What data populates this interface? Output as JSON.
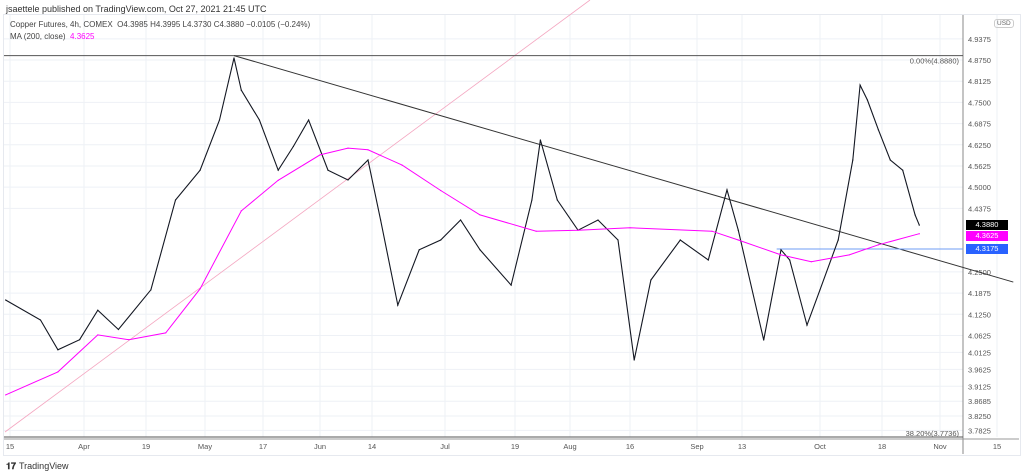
{
  "publisher_line": "jsaettele published on TradingView.com, Oct 27, 2021 21:45 UTC",
  "legend": {
    "symbol": "Copper Futures, 4h, COMEX",
    "ohlc": "O4.3985 H4.3995 L4.3730 C4.3880 −0.0105 (−0.24%)",
    "ma_label": "MA (200, close)",
    "ma_value": "4.3625"
  },
  "currency": "USD",
  "branding": "TradingView",
  "colors": {
    "price": "#131722",
    "ma": "#ff00ff",
    "level": "#2962ff",
    "trend": "#333333",
    "last_tag": "#000000"
  },
  "price_tags": {
    "last": "4.3880",
    "ma": "4.3625",
    "level": "4.3175"
  },
  "chart_data": {
    "type": "line",
    "title": "",
    "y_ticks": [
      "4.9375",
      "4.8750",
      "4.8125",
      "4.7500",
      "4.6875",
      "4.6250",
      "4.5625",
      "4.5000",
      "4.4375",
      "4.2500",
      "4.1875",
      "4.1250",
      "4.0625",
      "4.0125",
      "3.9625",
      "3.9125",
      "3.8685",
      "3.8250",
      "3.7825"
    ],
    "x_ticks": [
      {
        "label": "15",
        "date": "2021-03-15"
      },
      {
        "label": "Apr",
        "date": "2021-04-01"
      },
      {
        "label": "19",
        "date": "2021-04-19"
      },
      {
        "label": "May",
        "date": "2021-05-01"
      },
      {
        "label": "17",
        "date": "2021-05-17"
      },
      {
        "label": "Jun",
        "date": "2021-06-01"
      },
      {
        "label": "14",
        "date": "2021-06-14"
      },
      {
        "label": "Jul",
        "date": "2021-07-01"
      },
      {
        "label": "19",
        "date": "2021-07-19"
      },
      {
        "label": "Aug",
        "date": "2021-08-01"
      },
      {
        "label": "16",
        "date": "2021-08-16"
      },
      {
        "label": "Sep",
        "date": "2021-09-01"
      },
      {
        "label": "13",
        "date": "2021-09-13"
      },
      {
        "label": "Oct",
        "date": "2021-10-01"
      },
      {
        "label": "18",
        "date": "2021-10-18"
      },
      {
        "label": "Nov",
        "date": "2021-11-01"
      },
      {
        "label": "15",
        "date": "2021-11-15"
      }
    ],
    "ylim": [
      3.77,
      4.97
    ],
    "grid": true,
    "series": [
      {
        "name": "Copper Futures",
        "points": [
          [
            "2021-03-14",
            4.167
          ],
          [
            "2021-03-22",
            4.108
          ],
          [
            "2021-03-26",
            4.02
          ],
          [
            "2021-03-31",
            4.05
          ],
          [
            "2021-04-05",
            4.137
          ],
          [
            "2021-04-11",
            4.08
          ],
          [
            "2021-04-20",
            4.197
          ],
          [
            "2021-04-25",
            4.462
          ],
          [
            "2021-04-30",
            4.55
          ],
          [
            "2021-05-05",
            4.698
          ],
          [
            "2021-05-09",
            4.881
          ],
          [
            "2021-05-11",
            4.786
          ],
          [
            "2021-05-16",
            4.698
          ],
          [
            "2021-05-21",
            4.55
          ],
          [
            "2021-05-25",
            4.62
          ],
          [
            "2021-05-29",
            4.698
          ],
          [
            "2021-06-03",
            4.55
          ],
          [
            "2021-06-08",
            4.521
          ],
          [
            "2021-06-13",
            4.58
          ],
          [
            "2021-06-16",
            4.403
          ],
          [
            "2021-06-20",
            4.152
          ],
          [
            "2021-06-25",
            4.315
          ],
          [
            "2021-06-30",
            4.344
          ],
          [
            "2021-07-05",
            4.403
          ],
          [
            "2021-07-10",
            4.315
          ],
          [
            "2021-07-18",
            4.211
          ],
          [
            "2021-07-23",
            4.462
          ],
          [
            "2021-07-25",
            4.639
          ],
          [
            "2021-07-29",
            4.462
          ],
          [
            "2021-08-03",
            4.373
          ],
          [
            "2021-08-08",
            4.403
          ],
          [
            "2021-08-13",
            4.344
          ],
          [
            "2021-08-17",
            3.99
          ],
          [
            "2021-08-21",
            4.226
          ],
          [
            "2021-08-28",
            4.344
          ],
          [
            "2021-09-04",
            4.285
          ],
          [
            "2021-09-09",
            4.492
          ],
          [
            "2021-09-12",
            4.373
          ],
          [
            "2021-09-18",
            4.049
          ],
          [
            "2021-09-22",
            4.315
          ],
          [
            "2021-09-24",
            4.285
          ],
          [
            "2021-09-28",
            4.093
          ],
          [
            "2021-10-01",
            4.197
          ],
          [
            "2021-10-06",
            4.344
          ],
          [
            "2021-10-10",
            4.58
          ],
          [
            "2021-10-12",
            4.801
          ],
          [
            "2021-10-14",
            4.757
          ],
          [
            "2021-10-17",
            4.669
          ],
          [
            "2021-10-20",
            4.58
          ],
          [
            "2021-10-23",
            4.55
          ],
          [
            "2021-10-26",
            4.418
          ],
          [
            "2021-10-27",
            4.388
          ]
        ]
      },
      {
        "name": "MA (200, close)",
        "points": [
          [
            "2021-03-14",
            3.887
          ],
          [
            "2021-03-26",
            3.955
          ],
          [
            "2021-04-05",
            4.064
          ],
          [
            "2021-04-14",
            4.05
          ],
          [
            "2021-04-23",
            4.07
          ],
          [
            "2021-04-30",
            4.2
          ],
          [
            "2021-05-11",
            4.43
          ],
          [
            "2021-05-21",
            4.52
          ],
          [
            "2021-06-01",
            4.595
          ],
          [
            "2021-06-08",
            4.615
          ],
          [
            "2021-06-13",
            4.61
          ],
          [
            "2021-06-21",
            4.565
          ],
          [
            "2021-06-30",
            4.49
          ],
          [
            "2021-07-10",
            4.418
          ],
          [
            "2021-07-24",
            4.37
          ],
          [
            "2021-08-03",
            4.373
          ],
          [
            "2021-08-16",
            4.38
          ],
          [
            "2021-09-05",
            4.37
          ],
          [
            "2021-09-12",
            4.344
          ],
          [
            "2021-09-22",
            4.3
          ],
          [
            "2021-09-29",
            4.28
          ],
          [
            "2021-10-09",
            4.3
          ],
          [
            "2021-10-17",
            4.33
          ],
          [
            "2021-10-27",
            4.3625
          ]
        ]
      }
    ],
    "annotations": {
      "fib_top_label": "0.00%(4.8880)",
      "fib_top_price": 4.888,
      "fib_bottom_label": "38.20%(3.7736)",
      "fib_bottom_price": 3.7736,
      "trendline": [
        [
          "2021-05-09",
          4.888
        ],
        [
          "2021-11-19",
          4.22
        ]
      ],
      "horizontal_level": {
        "from": "2021-09-21",
        "price": 4.3175
      }
    }
  }
}
